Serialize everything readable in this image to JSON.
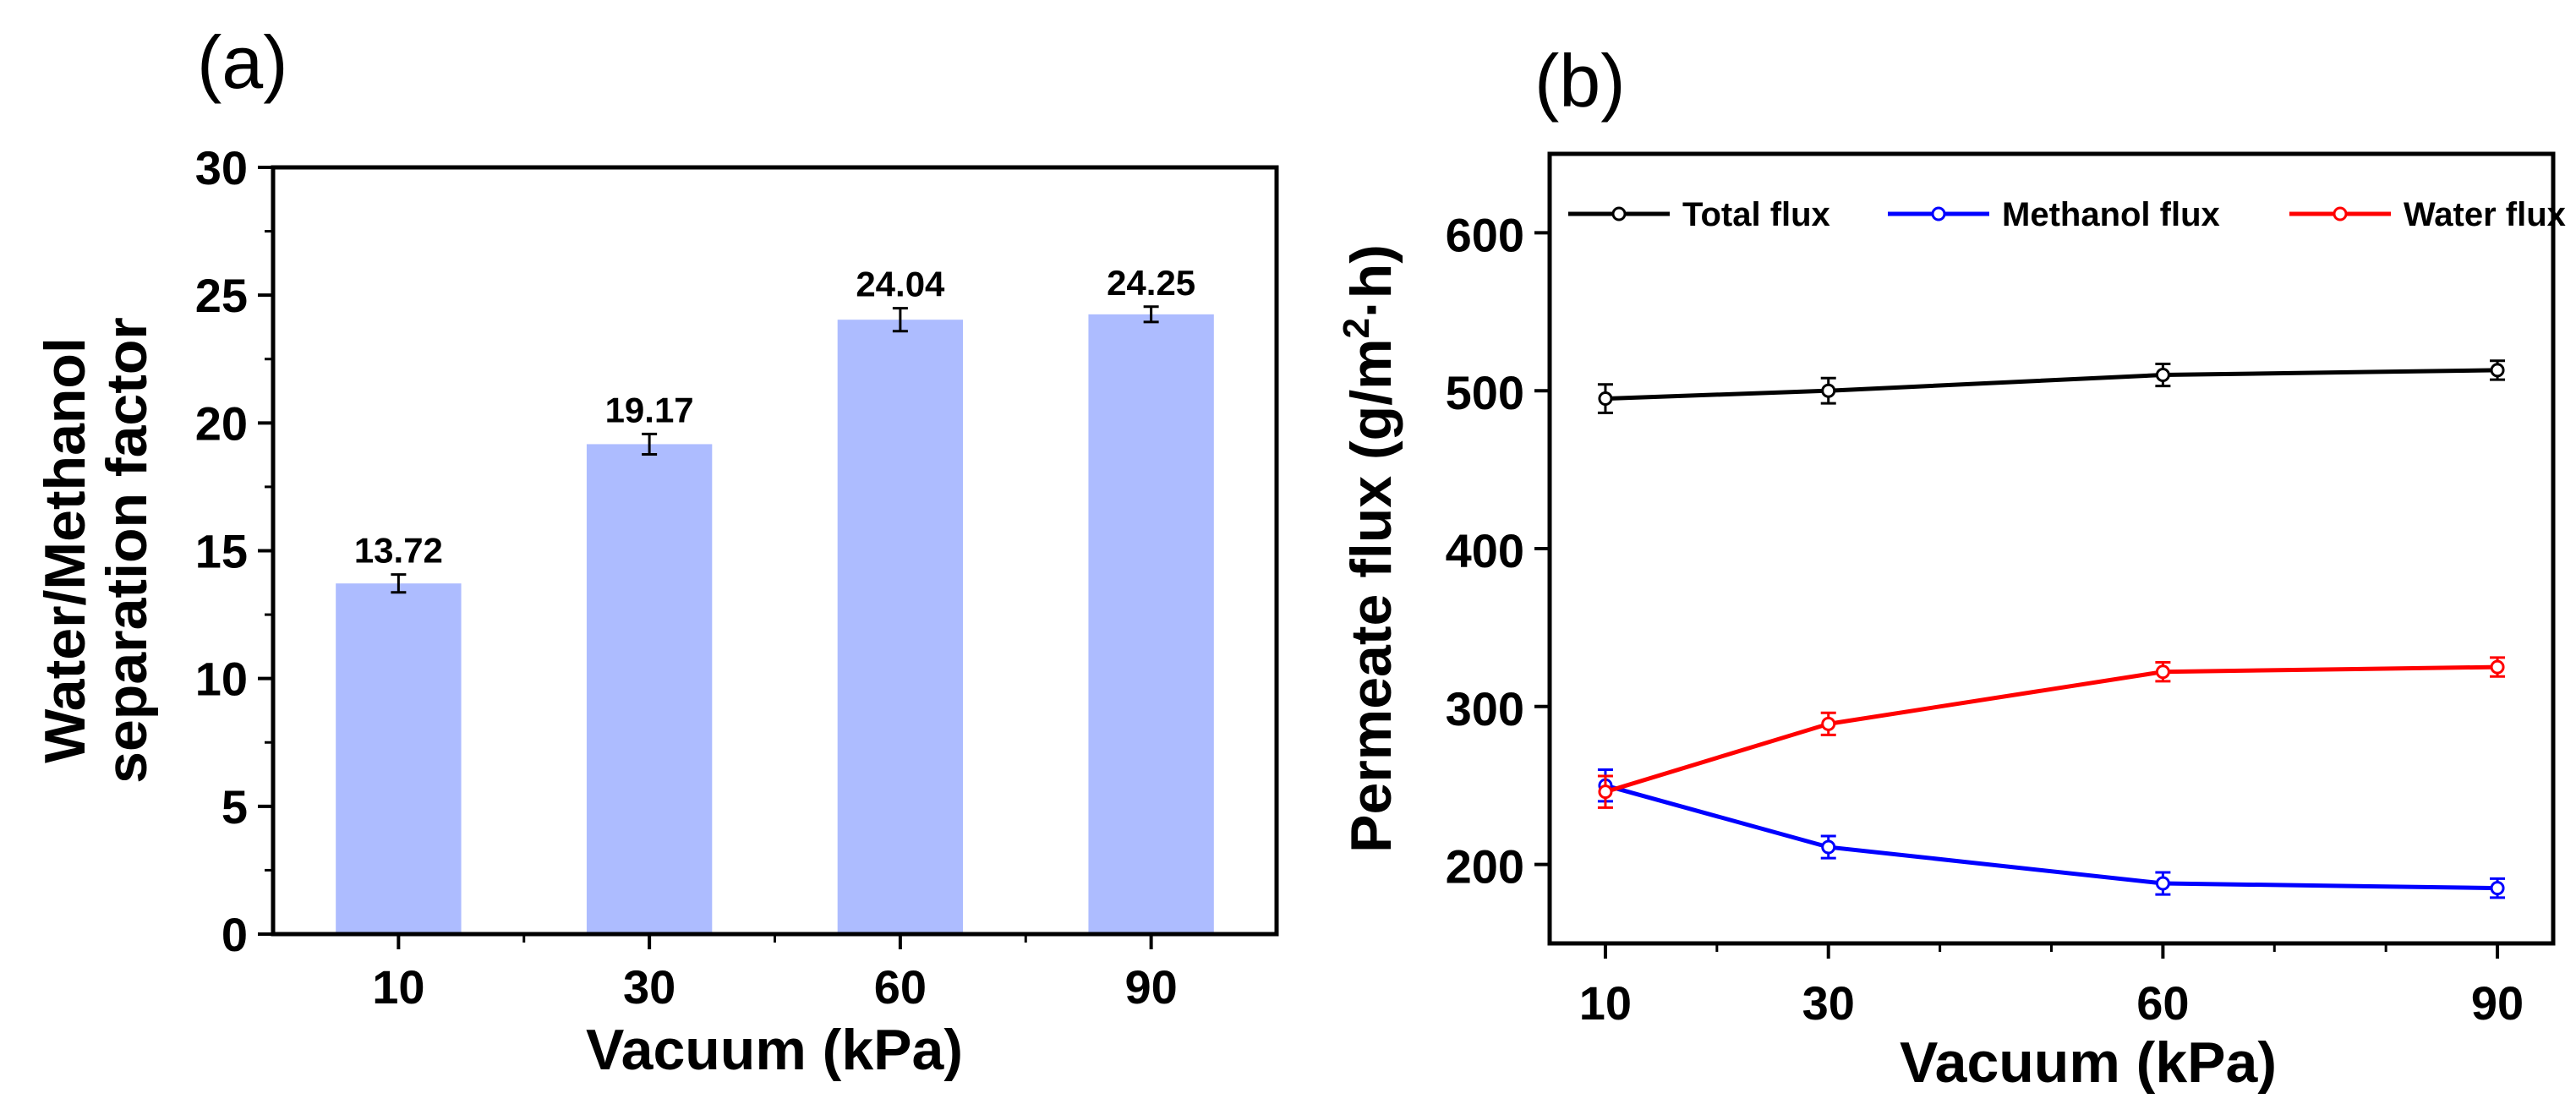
{
  "chart_data": [
    {
      "type": "bar",
      "panel": "(a)",
      "categories": [
        "10",
        "30",
        "60",
        "90"
      ],
      "values": [
        13.72,
        19.17,
        24.04,
        24.25
      ],
      "value_labels": [
        "13.72",
        "19.17",
        "24.04",
        "24.25"
      ],
      "errors": [
        0.35,
        0.4,
        0.45,
        0.3
      ],
      "xlabel": "Vacuum (kPa)",
      "ylabel_lines": [
        "Water/Methanol",
        "separation factor"
      ],
      "ylim": [
        0,
        30
      ],
      "yticks": [
        0,
        5,
        10,
        15,
        20,
        25,
        30
      ],
      "ytick_labels": [
        "0",
        "5",
        "10",
        "15",
        "20",
        "25",
        "30"
      ],
      "bar_color": "#adbcff",
      "grid": false
    },
    {
      "type": "line",
      "panel": "(b)",
      "x": [
        10,
        30,
        60,
        90
      ],
      "x_tick_labels": [
        "10",
        "30",
        "60",
        "90"
      ],
      "xlim": [
        5,
        95
      ],
      "xlabel": "Vacuum (kPa)",
      "ylabel_main": "Permeate flux (g/m",
      "ylabel_sup": "2",
      "ylabel_tail": "·h)",
      "ylim": [
        150,
        650
      ],
      "yticks": [
        200,
        300,
        400,
        500,
        600
      ],
      "ytick_labels": [
        "200",
        "300",
        "400",
        "500",
        "600"
      ],
      "legend_position": "top",
      "grid": false,
      "series": [
        {
          "name": "Total flux",
          "values": [
            495,
            500,
            510,
            513
          ],
          "errors": [
            9,
            8,
            7,
            6
          ],
          "color": "#000000"
        },
        {
          "name": "Methanol flux",
          "values": [
            250,
            211,
            188,
            185
          ],
          "errors": [
            10,
            7,
            7,
            6
          ],
          "color": "#0000ff"
        },
        {
          "name": "Water flux",
          "values": [
            246,
            289,
            322,
            325
          ],
          "errors": [
            10,
            7,
            6,
            6
          ],
          "color": "#ff0000"
        }
      ]
    }
  ]
}
